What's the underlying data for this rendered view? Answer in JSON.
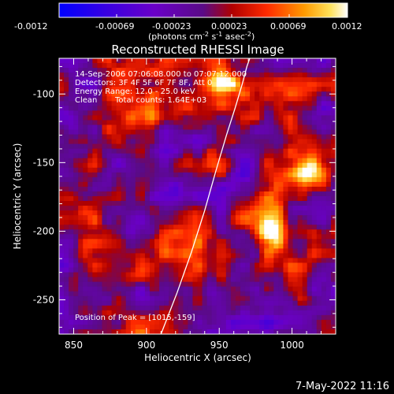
{
  "colorbar": {
    "ticks": [
      "-0.0012",
      "-0.00069",
      "-0.00023",
      "0.00023",
      "0.00069",
      "0.0012"
    ],
    "units_main": "(photons cm",
    "units_exp1": "-2",
    "units_mid": " s",
    "units_exp2": "-1",
    "units_end": " asec",
    "units_exp3": "-2",
    "units_close": ")",
    "range": [
      -0.0012,
      0.0012
    ]
  },
  "chart_data": {
    "type": "heatmap",
    "title": "Reconstructed RHESSI Image",
    "xlabel": "Heliocentric X (arcsec)",
    "ylabel": "Heliocentric Y (arcsec)",
    "xlim": [
      840,
      1030
    ],
    "ylim": [
      -275,
      -74
    ],
    "x_ticks": [
      "850",
      "900",
      "950",
      "1000"
    ],
    "x_tick_values": [
      850,
      900,
      950,
      1000
    ],
    "y_ticks": [
      "-100",
      "-150",
      "-200",
      "-250"
    ],
    "y_tick_values": [
      -100,
      -150,
      -200,
      -250
    ],
    "limb_curve": {
      "x": [
        910,
        921,
        931,
        940,
        948,
        955,
        961,
        966,
        969,
        971
      ],
      "y": [
        -275,
        -245,
        -215,
        -185,
        -155,
        -130,
        -110,
        -92,
        -80,
        -74
      ]
    },
    "bright_sources": [
      {
        "x": 1015,
        "y": -159,
        "value": 0.0012
      },
      {
        "x": 985,
        "y": -200,
        "value": 0.0009
      },
      {
        "x": 950,
        "y": -90,
        "value": 0.0009
      },
      {
        "x": 1005,
        "y": -230,
        "value": 0.0007
      },
      {
        "x": 860,
        "y": -155,
        "value": 0.0006
      },
      {
        "x": 900,
        "y": -115,
        "value": 0.0006
      }
    ],
    "annotations": [
      "14-Sep-2006 07:06:08.000 to 07:07:12.000",
      "Detectors: 3F 4F 5F 6F 7F 8F, Att 0",
      "Energy Range: 12.0 - 25.0 keV",
      "Clean",
      "Total counts: 1.64E+03"
    ],
    "peak_label": "Position of Peak = [1015,-159]"
  },
  "footer": {
    "date": "7-May-2022 11:16"
  }
}
